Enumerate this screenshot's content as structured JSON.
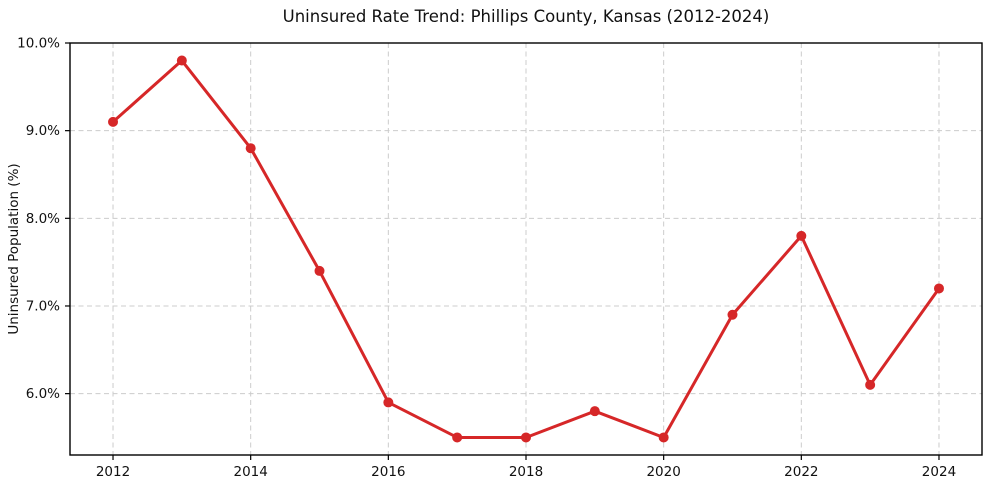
{
  "chart_data": {
    "type": "line",
    "title": "Uninsured Rate Trend: Phillips County, Kansas (2012-2024)",
    "xlabel": "",
    "ylabel": "Uninsured Population (%)",
    "x": [
      2012,
      2013,
      2014,
      2015,
      2016,
      2017,
      2018,
      2019,
      2020,
      2021,
      2022,
      2023,
      2024
    ],
    "values": [
      9.1,
      9.8,
      8.8,
      7.4,
      5.9,
      5.5,
      5.5,
      5.8,
      5.5,
      6.9,
      7.8,
      6.1,
      7.2
    ],
    "x_ticks": [
      2012,
      2014,
      2016,
      2018,
      2020,
      2022,
      2024
    ],
    "x_tick_labels": [
      "2012",
      "2014",
      "2016",
      "2018",
      "2020",
      "2022",
      "2024"
    ],
    "y_ticks": [
      6.0,
      7.0,
      8.0,
      9.0,
      10.0
    ],
    "y_tick_labels": [
      "6.0%",
      "7.0%",
      "8.0%",
      "9.0%",
      "10.0%"
    ],
    "xlim": [
      2011.375,
      2024.625
    ],
    "ylim": [
      5.3,
      10.0
    ],
    "line_color": "#d62728",
    "marker": "circle",
    "grid": true,
    "grid_style": "dashed",
    "grid_color": "#cccccc",
    "frame_color": "#000000",
    "background_color": "#ffffff",
    "legend": "none"
  }
}
